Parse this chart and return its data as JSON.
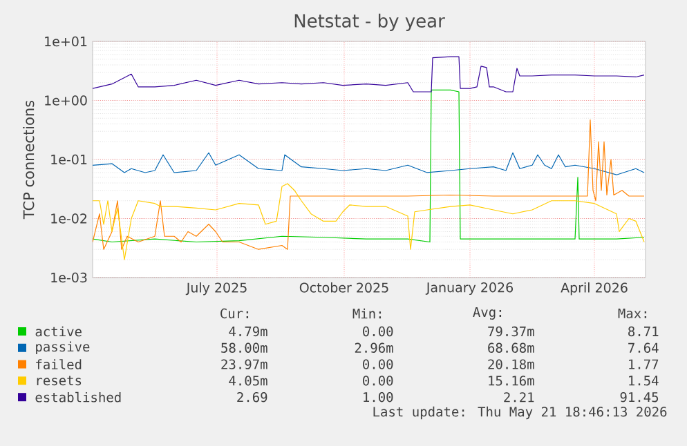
{
  "chart_data": {
    "type": "line",
    "title": "Netstat - by year",
    "ylabel": "TCP connections",
    "log": "y",
    "grid": true,
    "legend": "bottom",
    "marker": "none",
    "line_style": "solid",
    "xlim": [
      "2025-04-17",
      "2026-05-22"
    ],
    "xticks": [
      {
        "value": "2025-07-16",
        "label": "July 2025"
      },
      {
        "value": "2025-10-16",
        "label": "October 2025"
      },
      {
        "value": "2026-01-15",
        "label": "January 2026"
      },
      {
        "value": "2026-04-15",
        "label": "April 2026"
      }
    ],
    "ylim": [
      0.001,
      10
    ],
    "yticks": [
      {
        "value": 0.001,
        "label": "1e-03"
      },
      {
        "value": 0.01,
        "label": "1e-02"
      },
      {
        "value": 0.1,
        "label": "1e-01"
      },
      {
        "value": 1,
        "label": "1e+00"
      },
      {
        "value": 10,
        "label": "1e+01"
      }
    ],
    "series": [
      {
        "name": "active",
        "color": "#00cc00",
        "x": [
          "2025-04-17",
          "2025-05-01",
          "2025-06-01",
          "2025-07-01",
          "2025-08-01",
          "2025-09-01",
          "2025-10-01",
          "2025-11-01",
          "2025-12-01",
          "2025-12-17",
          "2025-12-18",
          "2026-01-01",
          "2026-01-07",
          "2026-01-08",
          "2026-02-01",
          "2026-03-01",
          "2026-04-01",
          "2026-04-03",
          "2026-04-04",
          "2026-05-01",
          "2026-05-21"
        ],
        "values": [
          0.0045,
          0.004,
          0.0045,
          0.004,
          0.0042,
          0.005,
          0.0048,
          0.0045,
          0.0045,
          0.004,
          1.5,
          1.5,
          1.4,
          0.0045,
          0.0045,
          0.0045,
          0.0045,
          0.05,
          0.0045,
          0.0045,
          0.0048
        ]
      },
      {
        "name": "passive",
        "color": "#0066b3",
        "x": [
          "2025-04-17",
          "2025-05-01",
          "2025-05-10",
          "2025-05-15",
          "2025-05-25",
          "2025-06-01",
          "2025-06-07",
          "2025-06-15",
          "2025-07-01",
          "2025-07-10",
          "2025-07-15",
          "2025-08-01",
          "2025-08-15",
          "2025-09-01",
          "2025-09-03",
          "2025-09-15",
          "2025-10-01",
          "2025-10-15",
          "2025-11-01",
          "2025-11-15",
          "2025-12-01",
          "2025-12-15",
          "2026-01-01",
          "2026-01-15",
          "2026-02-01",
          "2026-02-10",
          "2026-02-15",
          "2026-02-20",
          "2026-03-01",
          "2026-03-05",
          "2026-03-10",
          "2026-03-15",
          "2026-03-20",
          "2026-03-25",
          "2026-04-01",
          "2026-04-15",
          "2026-05-01",
          "2026-05-15",
          "2026-05-21"
        ],
        "values": [
          0.08,
          0.085,
          0.06,
          0.07,
          0.06,
          0.065,
          0.12,
          0.06,
          0.065,
          0.13,
          0.08,
          0.12,
          0.07,
          0.065,
          0.12,
          0.075,
          0.07,
          0.065,
          0.07,
          0.065,
          0.08,
          0.06,
          0.065,
          0.07,
          0.075,
          0.065,
          0.13,
          0.07,
          0.08,
          0.12,
          0.08,
          0.07,
          0.12,
          0.075,
          0.08,
          0.07,
          0.055,
          0.07,
          0.06
        ]
      },
      {
        "name": "failed",
        "color": "#ff8000",
        "x": [
          "2025-04-17",
          "2025-04-22",
          "2025-04-25",
          "2025-05-01",
          "2025-05-05",
          "2025-05-08",
          "2025-05-12",
          "2025-05-20",
          "2025-06-01",
          "2025-06-05",
          "2025-06-08",
          "2025-06-15",
          "2025-06-20",
          "2025-06-25",
          "2025-07-01",
          "2025-07-10",
          "2025-07-15",
          "2025-07-20",
          "2025-08-01",
          "2025-08-15",
          "2025-09-01",
          "2025-09-05",
          "2025-09-07",
          "2025-10-01",
          "2025-11-01",
          "2025-12-01",
          "2026-01-01",
          "2026-02-01",
          "2026-03-01",
          "2026-04-01",
          "2026-04-10",
          "2026-04-12",
          "2026-04-14",
          "2026-04-16",
          "2026-04-18",
          "2026-04-20",
          "2026-04-22",
          "2026-04-24",
          "2026-04-27",
          "2026-04-29",
          "2026-05-05",
          "2026-05-10",
          "2026-05-21"
        ],
        "values": [
          0.004,
          0.012,
          0.003,
          0.006,
          0.02,
          0.003,
          0.005,
          0.004,
          0.005,
          0.02,
          0.005,
          0.005,
          0.004,
          0.006,
          0.005,
          0.008,
          0.006,
          0.004,
          0.004,
          0.003,
          0.0035,
          0.003,
          0.024,
          0.024,
          0.024,
          0.024,
          0.025,
          0.024,
          0.024,
          0.024,
          0.024,
          0.47,
          0.03,
          0.02,
          0.2,
          0.03,
          0.2,
          0.025,
          0.1,
          0.025,
          0.03,
          0.024,
          0.024
        ]
      },
      {
        "name": "resets",
        "color": "#ffcc00",
        "x": [
          "2025-04-17",
          "2025-04-22",
          "2025-04-25",
          "2025-04-28",
          "2025-05-01",
          "2025-05-05",
          "2025-05-10",
          "2025-05-15",
          "2025-05-20",
          "2025-06-01",
          "2025-06-05",
          "2025-06-15",
          "2025-07-01",
          "2025-07-15",
          "2025-08-01",
          "2025-08-15",
          "2025-08-20",
          "2025-08-28",
          "2025-09-01",
          "2025-09-05",
          "2025-09-10",
          "2025-09-15",
          "2025-09-22",
          "2025-10-01",
          "2025-10-10",
          "2025-10-15",
          "2025-10-20",
          "2025-11-01",
          "2025-11-15",
          "2025-12-01",
          "2025-12-03",
          "2025-12-06",
          "2025-12-15",
          "2026-01-01",
          "2026-01-15",
          "2026-02-01",
          "2026-02-15",
          "2026-03-01",
          "2026-03-15",
          "2026-04-01",
          "2026-04-15",
          "2026-05-01",
          "2026-05-03",
          "2026-05-10",
          "2026-05-15",
          "2026-05-21"
        ],
        "values": [
          0.02,
          0.02,
          0.008,
          0.02,
          0.006,
          0.015,
          0.002,
          0.01,
          0.02,
          0.018,
          0.016,
          0.016,
          0.015,
          0.014,
          0.018,
          0.017,
          0.008,
          0.009,
          0.035,
          0.039,
          0.03,
          0.02,
          0.012,
          0.009,
          0.009,
          0.013,
          0.017,
          0.016,
          0.016,
          0.011,
          0.003,
          0.013,
          0.014,
          0.016,
          0.017,
          0.014,
          0.012,
          0.014,
          0.02,
          0.02,
          0.018,
          0.012,
          0.006,
          0.01,
          0.009,
          0.004
        ]
      },
      {
        "name": "established",
        "color": "#330099",
        "x": [
          "2025-04-17",
          "2025-05-01",
          "2025-05-15",
          "2025-05-20",
          "2025-06-01",
          "2025-06-15",
          "2025-07-01",
          "2025-07-15",
          "2025-08-01",
          "2025-08-15",
          "2025-09-01",
          "2025-09-15",
          "2025-10-01",
          "2025-10-15",
          "2025-11-01",
          "2025-11-15",
          "2025-12-01",
          "2025-12-05",
          "2025-12-15",
          "2025-12-18",
          "2025-12-19",
          "2026-01-01",
          "2026-01-07",
          "2026-01-08",
          "2026-01-15",
          "2026-01-20",
          "2026-01-23",
          "2026-01-27",
          "2026-01-29",
          "2026-02-01",
          "2026-02-10",
          "2026-02-15",
          "2026-02-18",
          "2026-02-20",
          "2026-03-01",
          "2026-03-15",
          "2026-04-01",
          "2026-04-15",
          "2026-05-01",
          "2026-05-15",
          "2026-05-21"
        ],
        "values": [
          1.6,
          1.9,
          2.8,
          1.7,
          1.7,
          1.8,
          2.2,
          1.8,
          2.2,
          1.9,
          2.0,
          1.9,
          2.0,
          1.8,
          1.9,
          1.8,
          2.0,
          1.4,
          1.4,
          1.4,
          5.3,
          5.5,
          5.5,
          1.6,
          1.6,
          1.7,
          3.8,
          3.6,
          1.7,
          1.7,
          1.4,
          1.4,
          3.5,
          2.6,
          2.6,
          2.7,
          2.7,
          2.6,
          2.6,
          2.5,
          2.7
        ]
      }
    ],
    "annotations": [
      "Cur:",
      "Min:",
      "Avg:",
      "Max:",
      "4.79m",
      "0.00",
      "79.37m",
      "8.71",
      "58.00m",
      "2.96m",
      "68.68m",
      "7.64",
      "23.97m",
      "0.00",
      "20.18m",
      "1.77",
      "4.05m",
      "0.00",
      "15.16m",
      "1.54",
      "2.69",
      "1.00",
      "2.21",
      "91.45",
      "Last update: Thu May 21 18:46:13 2026"
    ]
  }
}
